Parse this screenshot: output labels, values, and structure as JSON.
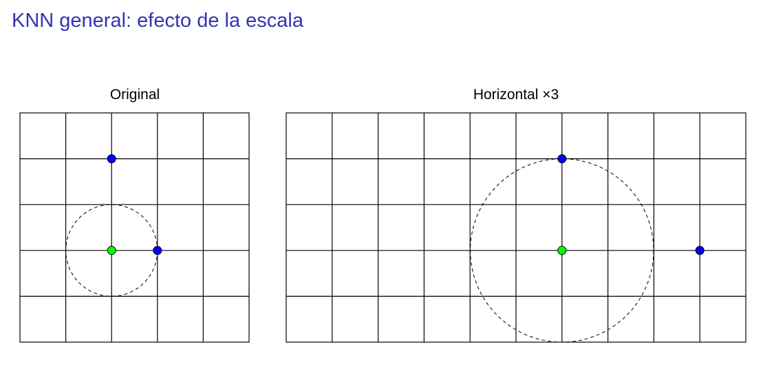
{
  "slide": {
    "title": "KNN general: efecto de la escala"
  },
  "diagrams": [
    {
      "title": "Original",
      "columns": 5,
      "rows": 5,
      "points": [
        {
          "col": 2,
          "row": 1,
          "kind": "neighbor"
        },
        {
          "col": 2,
          "row": 3,
          "kind": "query"
        },
        {
          "col": 3,
          "row": 3,
          "kind": "neighbor"
        }
      ],
      "circle": {
        "center_col": 2,
        "center_row": 3,
        "radius_cells": 1
      }
    },
    {
      "title": "Horizontal ×3",
      "columns": 10,
      "rows": 5,
      "points": [
        {
          "col": 6,
          "row": 1,
          "kind": "neighbor"
        },
        {
          "col": 6,
          "row": 3,
          "kind": "query"
        },
        {
          "col": 9,
          "row": 3,
          "kind": "neighbor"
        }
      ],
      "circle": {
        "center_col": 6,
        "center_row": 3,
        "radius_cells": 2
      }
    }
  ],
  "colors": {
    "title": "#3333b3",
    "neighbor_point": "#0000ff",
    "query_point": "#00ff00"
  }
}
